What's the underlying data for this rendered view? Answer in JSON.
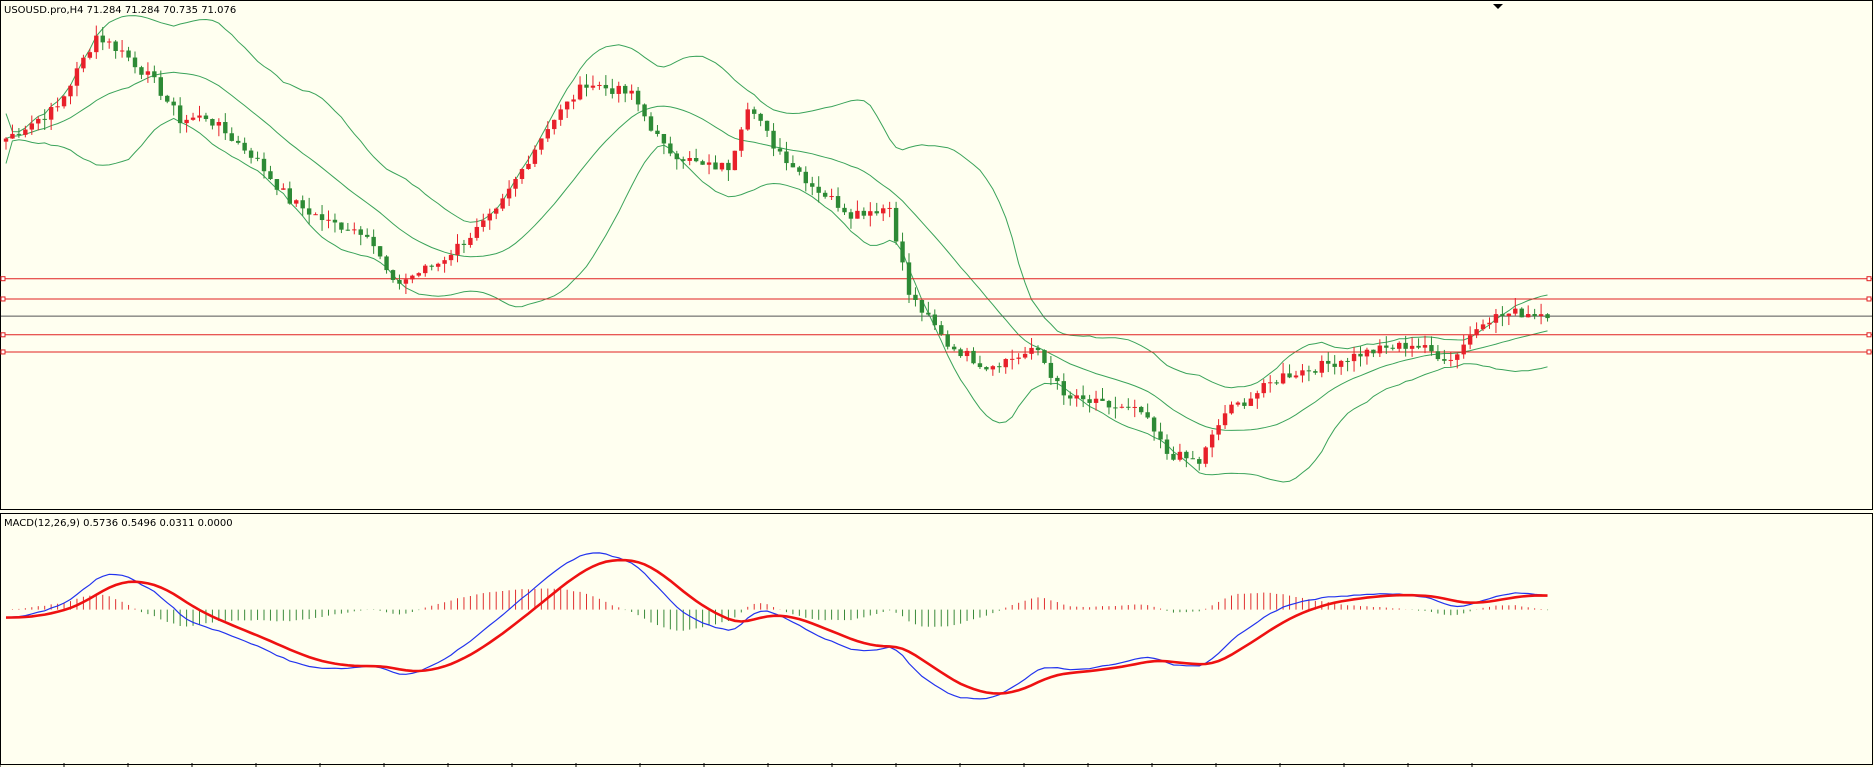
{
  "price_pane": {
    "header": "USOUSD.pro,H4  71.284 71.284 70.735 71.076"
  },
  "macd_pane": {
    "header": "MACD(12,26,9) 0.5736 0.5496 0.0311 0.0000"
  },
  "colors": {
    "background": "#fffff0",
    "bull_candle": "#e8202a",
    "bear_candle": "#2d8a35",
    "bollinger": "#3aa35a",
    "hline": "#e02020",
    "current_price_line": "#555555",
    "macd_line": "#2233ee",
    "signal_line": "#ee1111",
    "hist_positive": "#e03030",
    "hist_negative": "#3a8a3a"
  },
  "chart_data": [
    {
      "type": "candlestick",
      "symbol": "USOUSD.pro",
      "timeframe": "H4",
      "current_ohlc": {
        "open": 71.284,
        "high": 71.284,
        "low": 70.735,
        "close": 71.076
      },
      "ylim": [
        64.5,
        78.0
      ],
      "horizontal_levels": [
        72.1,
        71.45,
        70.3,
        69.75
      ],
      "current_price_line": 70.9,
      "bollinger_bands": true,
      "candle_count": 230
    },
    {
      "type": "line",
      "indicator": "MACD",
      "params": [
        12,
        26,
        9
      ],
      "values": {
        "macd": 0.5736,
        "signal": 0.5496,
        "histogram": 0.0311,
        "extra": 0.0
      },
      "ylim": [
        -2.6,
        1.6
      ],
      "series": [
        {
          "values": []
        },
        {
          "values": []
        },
        {
          "values": []
        }
      ]
    }
  ]
}
